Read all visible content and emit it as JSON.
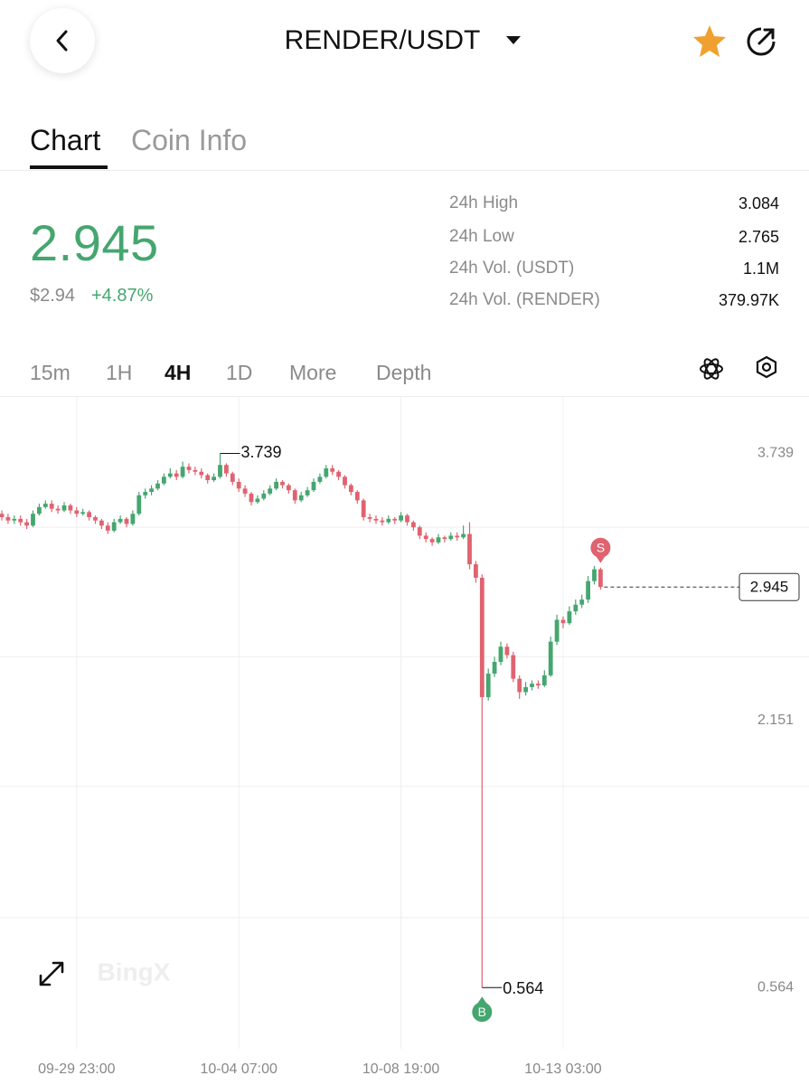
{
  "header": {
    "pair": "RENDER/USDT"
  },
  "tabs": [
    "Chart",
    "Coin Info"
  ],
  "ticker": {
    "price": "2.945",
    "usd": "$2.94",
    "change": "+4.87%",
    "stats": [
      {
        "label": "24h High",
        "value": "3.084"
      },
      {
        "label": "24h Low",
        "value": "2.765"
      },
      {
        "label": "24h Vol. (USDT)",
        "value": "1.1M"
      },
      {
        "label": "24h Vol. (RENDER)",
        "value": "379.97K"
      }
    ]
  },
  "intervals": [
    "15m",
    "1H",
    "4H",
    "1D",
    "More",
    "Depth"
  ],
  "watermark": "BingX",
  "chart_data": {
    "type": "candlestick",
    "up_color": "#45a66f",
    "down_color": "#e06370",
    "ylim": [
      0.2,
      4.08
    ],
    "yticks": [
      3.739,
      2.151,
      0.564
    ],
    "ygrid": [
      3.3,
      2.53,
      1.76,
      0.98
    ],
    "xticks": [
      {
        "value": 12,
        "label": "09-29 23:00"
      },
      {
        "value": 38,
        "label": "10-04 07:00"
      },
      {
        "value": 64,
        "label": "10-08 19:00"
      },
      {
        "value": 90,
        "label": "10-13 03:00"
      }
    ],
    "high_candle": 35,
    "low_candle": 77,
    "trades": [
      {
        "label": "S",
        "candle": 96,
        "color": "#e06370"
      },
      {
        "label": "B",
        "candle": 77,
        "color": "#45a66f"
      }
    ],
    "candles": [
      [
        3.38,
        3.4,
        3.34,
        3.36
      ],
      [
        3.36,
        3.38,
        3.32,
        3.34
      ],
      [
        3.34,
        3.37,
        3.32,
        3.35
      ],
      [
        3.35,
        3.37,
        3.31,
        3.33
      ],
      [
        3.33,
        3.35,
        3.29,
        3.31
      ],
      [
        3.31,
        3.4,
        3.3,
        3.38
      ],
      [
        3.38,
        3.44,
        3.37,
        3.42
      ],
      [
        3.42,
        3.46,
        3.41,
        3.44
      ],
      [
        3.44,
        3.46,
        3.39,
        3.41
      ],
      [
        3.41,
        3.43,
        3.38,
        3.4
      ],
      [
        3.4,
        3.45,
        3.39,
        3.43
      ],
      [
        3.43,
        3.44,
        3.38,
        3.4
      ],
      [
        3.4,
        3.42,
        3.36,
        3.38
      ],
      [
        3.38,
        3.41,
        3.37,
        3.39
      ],
      [
        3.39,
        3.4,
        3.34,
        3.36
      ],
      [
        3.36,
        3.37,
        3.32,
        3.34
      ],
      [
        3.34,
        3.35,
        3.29,
        3.31
      ],
      [
        3.31,
        3.33,
        3.26,
        3.28
      ],
      [
        3.28,
        3.35,
        3.27,
        3.33
      ],
      [
        3.33,
        3.37,
        3.32,
        3.35
      ],
      [
        3.35,
        3.36,
        3.3,
        3.32
      ],
      [
        3.32,
        3.4,
        3.31,
        3.38
      ],
      [
        3.38,
        3.51,
        3.37,
        3.49
      ],
      [
        3.49,
        3.53,
        3.47,
        3.51
      ],
      [
        3.51,
        3.55,
        3.49,
        3.53
      ],
      [
        3.53,
        3.58,
        3.52,
        3.56
      ],
      [
        3.56,
        3.62,
        3.55,
        3.6
      ],
      [
        3.6,
        3.65,
        3.59,
        3.62
      ],
      [
        3.62,
        3.64,
        3.58,
        3.6
      ],
      [
        3.6,
        3.69,
        3.59,
        3.66
      ],
      [
        3.66,
        3.68,
        3.62,
        3.64
      ],
      [
        3.64,
        3.66,
        3.61,
        3.63
      ],
      [
        3.63,
        3.65,
        3.59,
        3.61
      ],
      [
        3.61,
        3.62,
        3.56,
        3.58
      ],
      [
        3.58,
        3.62,
        3.57,
        3.6
      ],
      [
        3.6,
        3.739,
        3.59,
        3.67
      ],
      [
        3.67,
        3.68,
        3.6,
        3.62
      ],
      [
        3.62,
        3.63,
        3.55,
        3.57
      ],
      [
        3.57,
        3.59,
        3.51,
        3.53
      ],
      [
        3.53,
        3.55,
        3.48,
        3.5
      ],
      [
        3.5,
        3.51,
        3.43,
        3.45
      ],
      [
        3.45,
        3.49,
        3.44,
        3.47
      ],
      [
        3.47,
        3.52,
        3.46,
        3.5
      ],
      [
        3.5,
        3.55,
        3.49,
        3.53
      ],
      [
        3.53,
        3.59,
        3.52,
        3.57
      ],
      [
        3.57,
        3.58,
        3.53,
        3.55
      ],
      [
        3.55,
        3.56,
        3.5,
        3.52
      ],
      [
        3.52,
        3.53,
        3.44,
        3.46
      ],
      [
        3.46,
        3.51,
        3.45,
        3.49
      ],
      [
        3.49,
        3.54,
        3.48,
        3.52
      ],
      [
        3.52,
        3.59,
        3.51,
        3.57
      ],
      [
        3.57,
        3.62,
        3.56,
        3.6
      ],
      [
        3.6,
        3.67,
        3.59,
        3.65
      ],
      [
        3.65,
        3.67,
        3.61,
        3.63
      ],
      [
        3.63,
        3.64,
        3.58,
        3.6
      ],
      [
        3.6,
        3.61,
        3.53,
        3.55
      ],
      [
        3.55,
        3.56,
        3.49,
        3.51
      ],
      [
        3.51,
        3.52,
        3.44,
        3.46
      ],
      [
        3.46,
        3.47,
        3.34,
        3.36
      ],
      [
        3.36,
        3.38,
        3.33,
        3.35
      ],
      [
        3.35,
        3.37,
        3.32,
        3.34
      ],
      [
        3.34,
        3.36,
        3.31,
        3.33
      ],
      [
        3.33,
        3.37,
        3.32,
        3.35
      ],
      [
        3.35,
        3.36,
        3.32,
        3.34
      ],
      [
        3.34,
        3.39,
        3.33,
        3.37
      ],
      [
        3.37,
        3.38,
        3.31,
        3.33
      ],
      [
        3.33,
        3.34,
        3.28,
        3.3
      ],
      [
        3.3,
        3.31,
        3.23,
        3.25
      ],
      [
        3.25,
        3.27,
        3.21,
        3.23
      ],
      [
        3.23,
        3.24,
        3.19,
        3.21
      ],
      [
        3.21,
        3.26,
        3.2,
        3.24
      ],
      [
        3.24,
        3.25,
        3.21,
        3.23
      ],
      [
        3.23,
        3.27,
        3.22,
        3.25
      ],
      [
        3.25,
        3.27,
        3.22,
        3.24
      ],
      [
        3.24,
        3.31,
        3.23,
        3.26
      ],
      [
        3.26,
        3.33,
        3.05,
        3.08
      ],
      [
        3.08,
        3.1,
        2.97,
        3.0
      ],
      [
        3.0,
        3.02,
        0.564,
        2.29
      ],
      [
        2.29,
        2.46,
        2.27,
        2.43
      ],
      [
        2.43,
        2.53,
        2.41,
        2.5
      ],
      [
        2.5,
        2.62,
        2.48,
        2.59
      ],
      [
        2.59,
        2.61,
        2.52,
        2.54
      ],
      [
        2.54,
        2.56,
        2.38,
        2.4
      ],
      [
        2.4,
        2.42,
        2.28,
        2.32
      ],
      [
        2.32,
        2.38,
        2.3,
        2.35
      ],
      [
        2.35,
        2.39,
        2.33,
        2.37
      ],
      [
        2.37,
        2.39,
        2.34,
        2.36
      ],
      [
        2.36,
        2.45,
        2.35,
        2.42
      ],
      [
        2.42,
        2.65,
        2.41,
        2.62
      ],
      [
        2.62,
        2.78,
        2.6,
        2.75
      ],
      [
        2.75,
        2.77,
        2.7,
        2.73
      ],
      [
        2.73,
        2.83,
        2.72,
        2.8
      ],
      [
        2.8,
        2.87,
        2.78,
        2.84
      ],
      [
        2.84,
        2.9,
        2.82,
        2.87
      ],
      [
        2.87,
        3.01,
        2.85,
        2.98
      ],
      [
        2.98,
        3.07,
        2.96,
        3.05
      ],
      [
        3.05,
        3.06,
        2.93,
        2.945
      ]
    ]
  }
}
